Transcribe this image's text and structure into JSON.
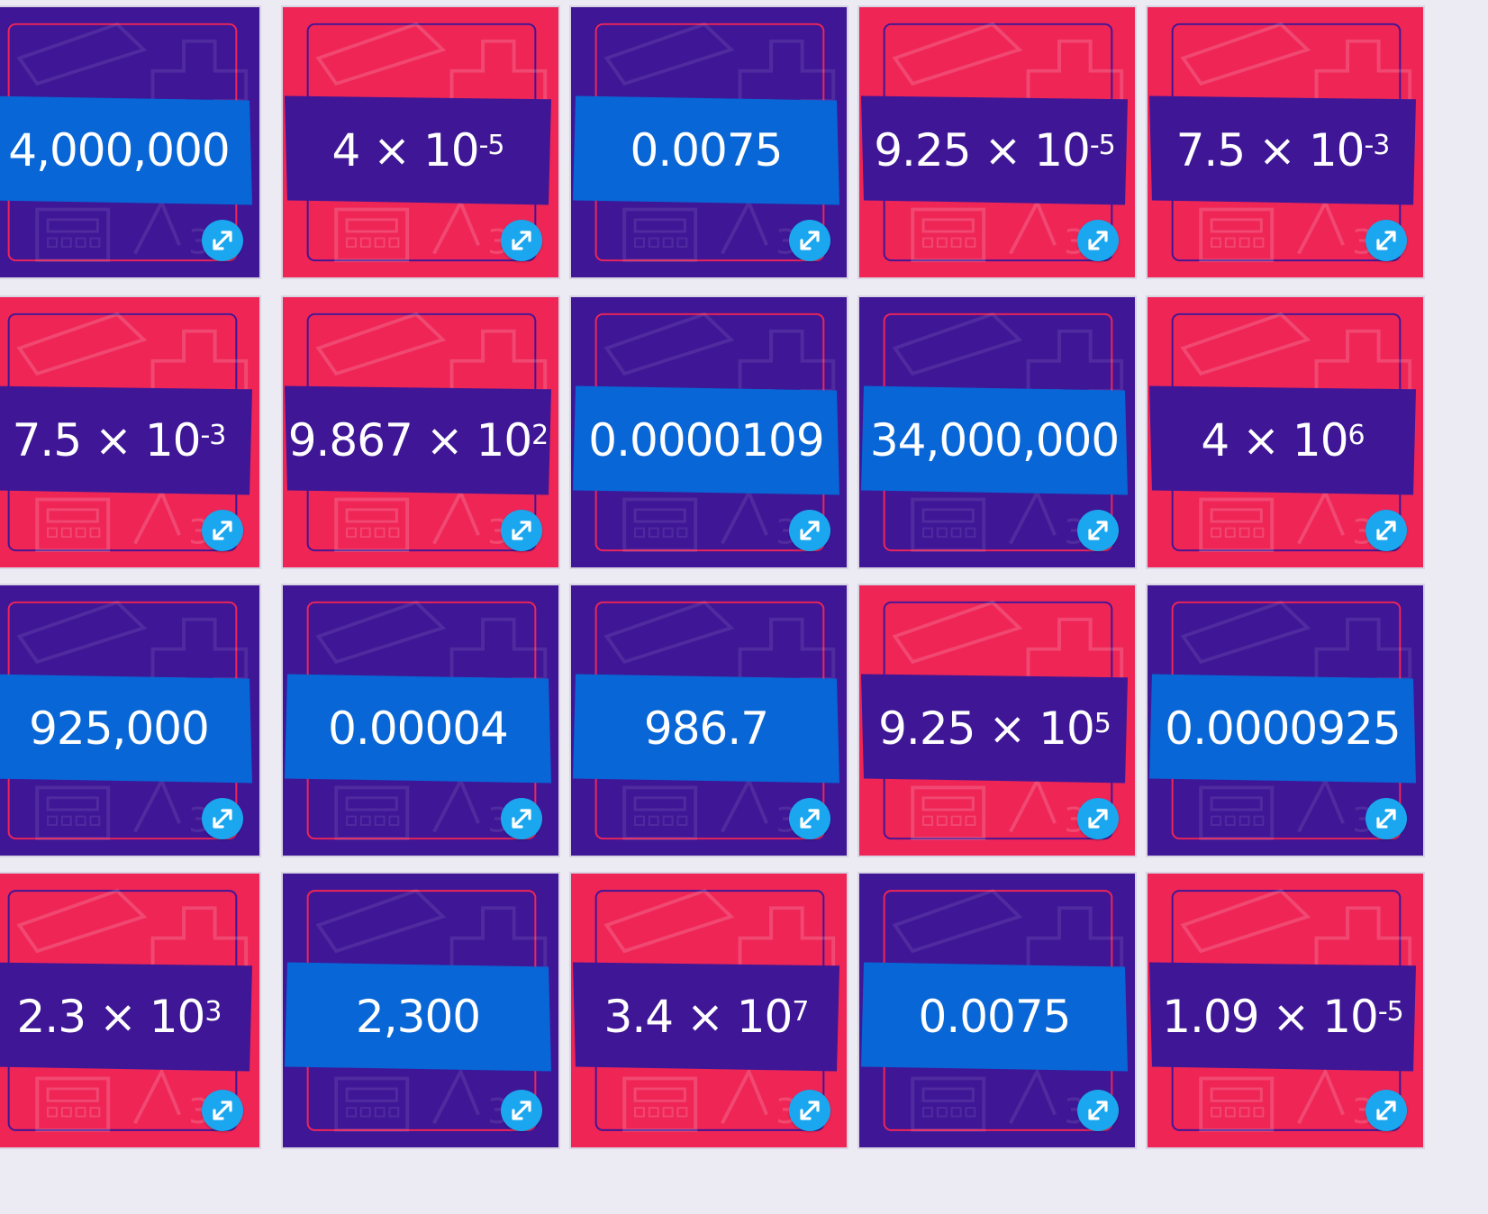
{
  "cards": [
    {
      "row": 0,
      "col": 0,
      "theme": "purple",
      "band": "blue",
      "base": "4,000,000",
      "exp": ""
    },
    {
      "row": 0,
      "col": 1,
      "theme": "red",
      "band": "purple",
      "base": "4 × 10",
      "exp": "-5"
    },
    {
      "row": 0,
      "col": 2,
      "theme": "purple",
      "band": "blue",
      "base": "0.0075",
      "exp": ""
    },
    {
      "row": 0,
      "col": 3,
      "theme": "red",
      "band": "purple",
      "base": "9.25 × 10",
      "exp": "-5"
    },
    {
      "row": 0,
      "col": 4,
      "theme": "red",
      "band": "purple",
      "base": "7.5 × 10",
      "exp": "-3"
    },
    {
      "row": 1,
      "col": 0,
      "theme": "red",
      "band": "purple",
      "base": "7.5 × 10",
      "exp": "-3"
    },
    {
      "row": 1,
      "col": 1,
      "theme": "red",
      "band": "purple",
      "base": "9.867 × 10",
      "exp": "2"
    },
    {
      "row": 1,
      "col": 2,
      "theme": "purple",
      "band": "blue",
      "base": "0.0000109",
      "exp": ""
    },
    {
      "row": 1,
      "col": 3,
      "theme": "purple",
      "band": "blue",
      "base": "34,000,000",
      "exp": ""
    },
    {
      "row": 1,
      "col": 4,
      "theme": "red",
      "band": "purple",
      "base": "4 × 10",
      "exp": "6"
    },
    {
      "row": 2,
      "col": 0,
      "theme": "purple",
      "band": "blue",
      "base": "925,000",
      "exp": ""
    },
    {
      "row": 2,
      "col": 1,
      "theme": "purple",
      "band": "blue",
      "base": "0.00004",
      "exp": ""
    },
    {
      "row": 2,
      "col": 2,
      "theme": "purple",
      "band": "blue",
      "base": "986.7",
      "exp": ""
    },
    {
      "row": 2,
      "col": 3,
      "theme": "red",
      "band": "purple",
      "base": "9.25 × 10",
      "exp": "5"
    },
    {
      "row": 2,
      "col": 4,
      "theme": "purple",
      "band": "blue",
      "base": "0.0000925",
      "exp": ""
    },
    {
      "row": 3,
      "col": 0,
      "theme": "red",
      "band": "purple",
      "base": "2.3 × 10",
      "exp": "3"
    },
    {
      "row": 3,
      "col": 1,
      "theme": "purple",
      "band": "blue",
      "base": "2,300",
      "exp": ""
    },
    {
      "row": 3,
      "col": 2,
      "theme": "red",
      "band": "purple",
      "base": "3.4 × 10",
      "exp": "7"
    },
    {
      "row": 3,
      "col": 3,
      "theme": "purple",
      "band": "blue",
      "base": "0.0075",
      "exp": ""
    },
    {
      "row": 3,
      "col": 4,
      "theme": "red",
      "band": "purple",
      "base": "1.09 × 10",
      "exp": "-5"
    }
  ],
  "icons": {
    "expand": "expand-arrows-icon",
    "pattern": "math-doodle-pattern"
  },
  "colors": {
    "purple_card": "#3f1696",
    "red_card": "#ef2556",
    "blue_band": "#0866d6",
    "expand_button": "#1aa7f0",
    "text": "#ffffff"
  }
}
